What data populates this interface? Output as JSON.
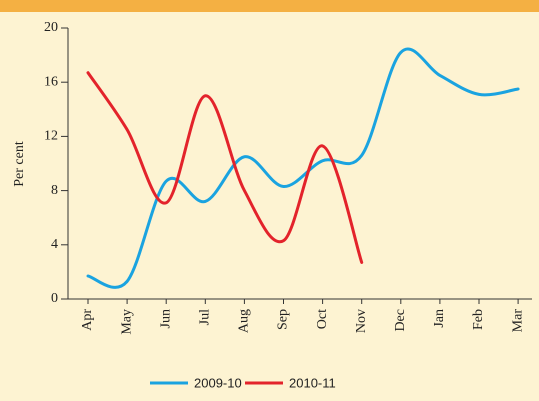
{
  "chart_data": {
    "type": "line",
    "y_label": "Per cent",
    "categories": [
      "Apr",
      "May",
      "Jun",
      "Jul",
      "Aug",
      "Sep",
      "Oct",
      "Nov",
      "Dec",
      "Jan",
      "Feb",
      "Mar"
    ],
    "series": [
      {
        "name": "2009-10",
        "color": "#1aa3e0",
        "values": [
          1.7,
          1.3,
          8.7,
          7.2,
          10.5,
          8.3,
          10.2,
          10.6,
          18.2,
          16.5,
          15.1,
          15.5
        ]
      },
      {
        "name": "2010-11",
        "color": "#e3232b",
        "values": [
          16.7,
          12.5,
          7.1,
          15.0,
          8.0,
          4.3,
          11.3,
          2.7,
          null,
          null,
          null,
          null
        ]
      }
    ],
    "ylim": [
      0,
      20
    ],
    "yticks": [
      0,
      4,
      8,
      12,
      16,
      20
    ],
    "grid": false
  }
}
